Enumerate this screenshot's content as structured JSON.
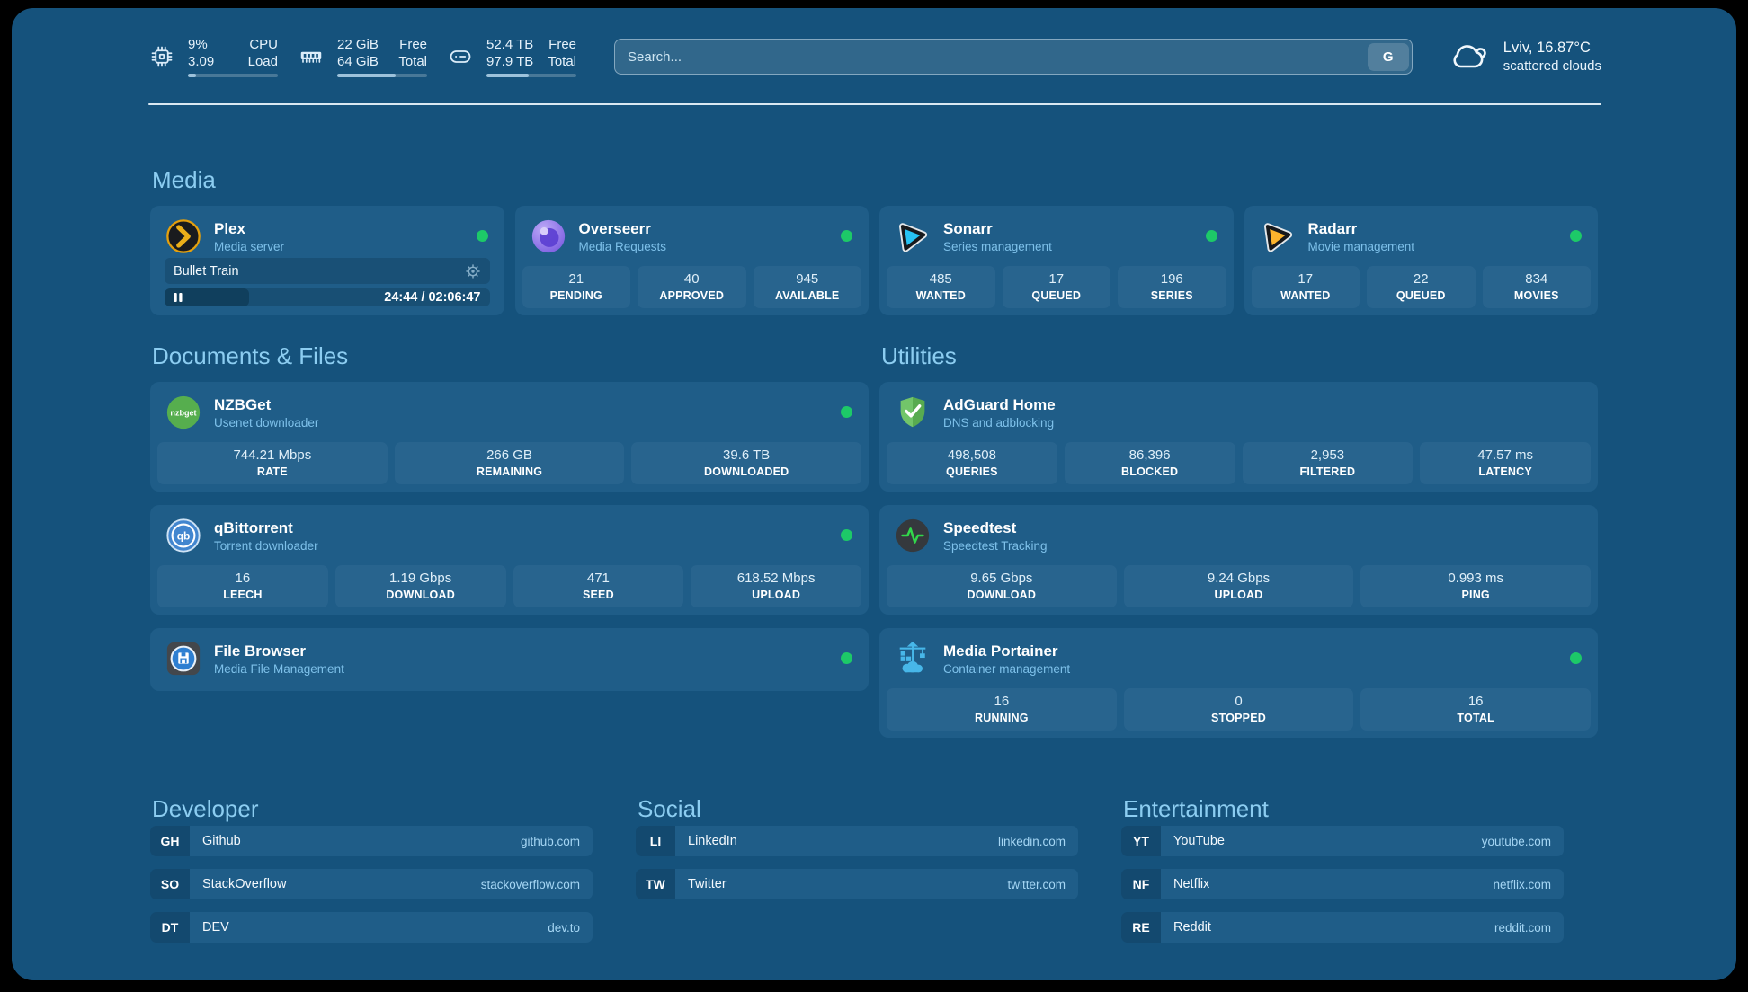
{
  "topbar": {
    "system_stats": [
      {
        "icon": "cpu-icon",
        "rows": [
          [
            "9%",
            "CPU"
          ],
          [
            "3.09",
            "Load"
          ]
        ],
        "progress_pct": 9
      },
      {
        "icon": "ram-icon",
        "rows": [
          [
            "22 GiB",
            "Free"
          ],
          [
            "64 GiB",
            "Total"
          ]
        ],
        "progress_pct": 65
      },
      {
        "icon": "disk-icon",
        "rows": [
          [
            "52.4 TB",
            "Free"
          ],
          [
            "97.9 TB",
            "Total"
          ]
        ],
        "progress_pct": 47
      }
    ],
    "search": {
      "placeholder": "Search...",
      "provider_button": "G"
    },
    "weather": {
      "icon": "cloud-icon",
      "title": "Lviv, 16.87°C",
      "subtitle": "scattered clouds"
    }
  },
  "sections": {
    "media": {
      "title": "Media",
      "cards": [
        {
          "icon": "plex-icon",
          "name": "Plex",
          "desc": "Media server",
          "online": true,
          "player": {
            "title": "Bullet Train",
            "time": "24:44 / 02:06:47",
            "progress_pct": 20
          }
        },
        {
          "icon": "overseerr-icon",
          "name": "Overseerr",
          "desc": "Media Requests",
          "online": true,
          "stats": [
            {
              "value": "21",
              "label": "PENDING"
            },
            {
              "value": "40",
              "label": "APPROVED"
            },
            {
              "value": "945",
              "label": "AVAILABLE"
            }
          ]
        },
        {
          "icon": "sonarr-icon",
          "name": "Sonarr",
          "desc": "Series management",
          "online": true,
          "stats": [
            {
              "value": "485",
              "label": "WANTED"
            },
            {
              "value": "17",
              "label": "QUEUED"
            },
            {
              "value": "196",
              "label": "SERIES"
            }
          ]
        },
        {
          "icon": "radarr-icon",
          "name": "Radarr",
          "desc": "Movie management",
          "online": true,
          "stats": [
            {
              "value": "17",
              "label": "WANTED"
            },
            {
              "value": "22",
              "label": "QUEUED"
            },
            {
              "value": "834",
              "label": "MOVIES"
            }
          ]
        }
      ]
    },
    "documents": {
      "title": "Documents & Files",
      "cards": [
        {
          "icon": "nzbget-icon",
          "name": "NZBGet",
          "desc": "Usenet downloader",
          "online": true,
          "stats": [
            {
              "value": "744.21 Mbps",
              "label": "RATE"
            },
            {
              "value": "266 GB",
              "label": "REMAINING"
            },
            {
              "value": "39.6 TB",
              "label": "DOWNLOADED"
            }
          ]
        },
        {
          "icon": "qbittorrent-icon",
          "name": "qBittorrent",
          "desc": "Torrent downloader",
          "online": true,
          "stats": [
            {
              "value": "16",
              "label": "LEECH"
            },
            {
              "value": "1.19 Gbps",
              "label": "DOWNLOAD"
            },
            {
              "value": "471",
              "label": "SEED"
            },
            {
              "value": "618.52 Mbps",
              "label": "UPLOAD"
            }
          ]
        },
        {
          "icon": "filebrowser-icon",
          "name": "File Browser",
          "desc": "Media File Management",
          "online": true,
          "compact": true
        }
      ]
    },
    "utilities": {
      "title": "Utilities",
      "cards": [
        {
          "icon": "adguard-icon",
          "name": "AdGuard Home",
          "desc": "DNS and adblocking",
          "online": false,
          "stats": [
            {
              "value": "498,508",
              "label": "QUERIES"
            },
            {
              "value": "86,396",
              "label": "BLOCKED"
            },
            {
              "value": "2,953",
              "label": "FILTERED"
            },
            {
              "value": "47.57 ms",
              "label": "LATENCY"
            }
          ]
        },
        {
          "icon": "speedtest-icon",
          "name": "Speedtest",
          "desc": "Speedtest Tracking",
          "online": false,
          "stats": [
            {
              "value": "9.65 Gbps",
              "label": "DOWNLOAD"
            },
            {
              "value": "9.24 Gbps",
              "label": "UPLOAD"
            },
            {
              "value": "0.993 ms",
              "label": "PING"
            }
          ]
        },
        {
          "icon": "portainer-icon",
          "name": "Media Portainer",
          "desc": "Container management",
          "online": true,
          "stats": [
            {
              "value": "16",
              "label": "RUNNING"
            },
            {
              "value": "0",
              "label": "STOPPED"
            },
            {
              "value": "16",
              "label": "TOTAL"
            }
          ]
        }
      ]
    },
    "bookmarks": [
      {
        "title": "Developer",
        "items": [
          {
            "abbr": "GH",
            "name": "Github",
            "url": "github.com"
          },
          {
            "abbr": "SO",
            "name": "StackOverflow",
            "url": "stackoverflow.com"
          },
          {
            "abbr": "DT",
            "name": "DEV",
            "url": "dev.to"
          }
        ]
      },
      {
        "title": "Social",
        "items": [
          {
            "abbr": "LI",
            "name": "LinkedIn",
            "url": "linkedin.com"
          },
          {
            "abbr": "TW",
            "name": "Twitter",
            "url": "twitter.com"
          }
        ]
      },
      {
        "title": "Entertainment",
        "items": [
          {
            "abbr": "YT",
            "name": "YouTube",
            "url": "youtube.com"
          },
          {
            "abbr": "NF",
            "name": "Netflix",
            "url": "netflix.com"
          },
          {
            "abbr": "RE",
            "name": "Reddit",
            "url": "reddit.com"
          }
        ]
      }
    ]
  },
  "colors": {
    "background": "#15527C",
    "card": "#1F5D88",
    "stat_tile": "#28648E",
    "accent_text": "#8CCDF1",
    "status_online": "#1DC968"
  }
}
